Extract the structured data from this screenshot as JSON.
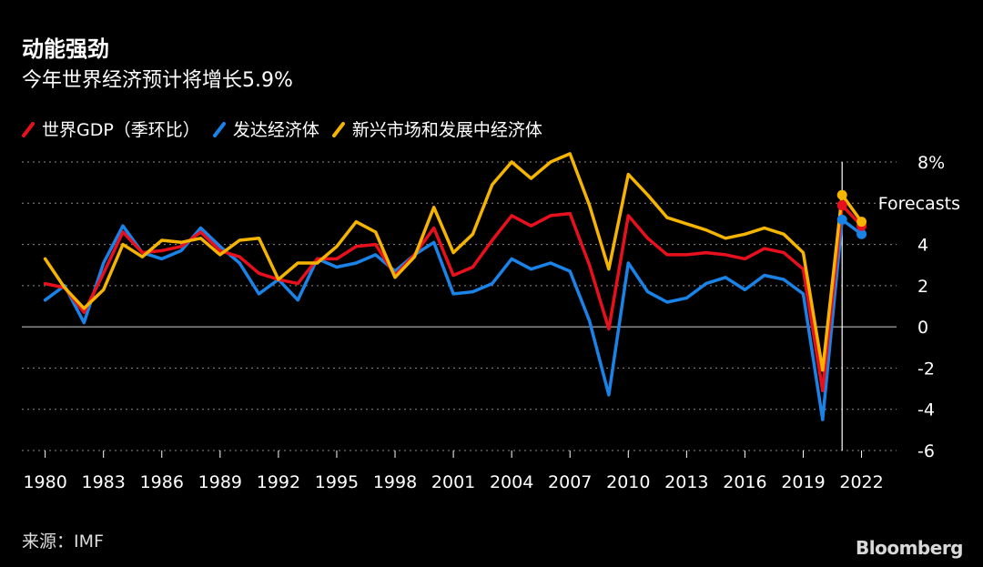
{
  "title": "动能强劲",
  "subtitle": "今年世界经济预计将增长5.9%",
  "source": "来源：IMF",
  "brand": "Bloomberg",
  "chart_data": {
    "type": "line",
    "title": "动能强劲",
    "subtitle": "今年世界经济预计将增长5.9%",
    "annotation": "Forecasts",
    "forecast_start": 2021,
    "ylim": [
      -6,
      8
    ],
    "yticks": [
      "8%",
      "4",
      "2",
      "0",
      "-2",
      "-4",
      "-6"
    ],
    "ytick_values": [
      8,
      4,
      2,
      0,
      -2,
      -4,
      -6
    ],
    "xticks": [
      "1980",
      "1983",
      "1986",
      "1989",
      "1992",
      "1995",
      "1998",
      "2001",
      "2004",
      "2007",
      "2010",
      "2013",
      "2016",
      "2019",
      "2022"
    ],
    "x": [
      1980,
      1981,
      1982,
      1983,
      1984,
      1985,
      1986,
      1987,
      1988,
      1989,
      1990,
      1991,
      1992,
      1993,
      1994,
      1995,
      1996,
      1997,
      1998,
      1999,
      2000,
      2001,
      2002,
      2003,
      2004,
      2005,
      2006,
      2007,
      2008,
      2009,
      2010,
      2011,
      2012,
      2013,
      2014,
      2015,
      2016,
      2017,
      2018,
      2019,
      2020,
      2021,
      2022
    ],
    "series": [
      {
        "name": "世界GDP（季环比）",
        "color": "#e8101c",
        "values": [
          2.1,
          1.9,
          0.7,
          2.6,
          4.6,
          3.6,
          3.7,
          3.9,
          4.6,
          3.7,
          3.4,
          2.6,
          2.3,
          2.1,
          3.3,
          3.3,
          3.9,
          4.0,
          2.5,
          3.5,
          4.8,
          2.5,
          2.9,
          4.2,
          5.4,
          4.9,
          5.4,
          5.5,
          3.0,
          -0.1,
          5.4,
          4.3,
          3.5,
          3.5,
          3.6,
          3.5,
          3.3,
          3.8,
          3.6,
          2.8,
          -3.1,
          5.9,
          4.9
        ]
      },
      {
        "name": "发达经济体",
        "color": "#1a83e8",
        "values": [
          1.3,
          2.0,
          0.2,
          3.1,
          4.9,
          3.6,
          3.3,
          3.7,
          4.8,
          3.9,
          3.1,
          1.6,
          2.3,
          1.3,
          3.3,
          2.9,
          3.1,
          3.5,
          2.7,
          3.5,
          4.1,
          1.6,
          1.7,
          2.1,
          3.3,
          2.8,
          3.1,
          2.7,
          0.3,
          -3.3,
          3.1,
          1.7,
          1.2,
          1.4,
          2.1,
          2.4,
          1.8,
          2.5,
          2.3,
          1.6,
          -4.5,
          5.2,
          4.5
        ]
      },
      {
        "name": "新兴市场和发展中经济体",
        "color": "#f5b400",
        "values": [
          3.3,
          1.9,
          0.9,
          1.8,
          4.0,
          3.4,
          4.2,
          4.1,
          4.3,
          3.5,
          4.2,
          4.3,
          2.3,
          3.1,
          3.1,
          3.9,
          5.1,
          4.6,
          2.4,
          3.4,
          5.8,
          3.6,
          4.5,
          6.9,
          8.0,
          7.2,
          8.0,
          8.4,
          5.9,
          2.8,
          7.4,
          6.4,
          5.3,
          5.0,
          4.7,
          4.3,
          4.5,
          4.8,
          4.5,
          3.6,
          -2.1,
          6.4,
          5.1
        ]
      }
    ]
  }
}
